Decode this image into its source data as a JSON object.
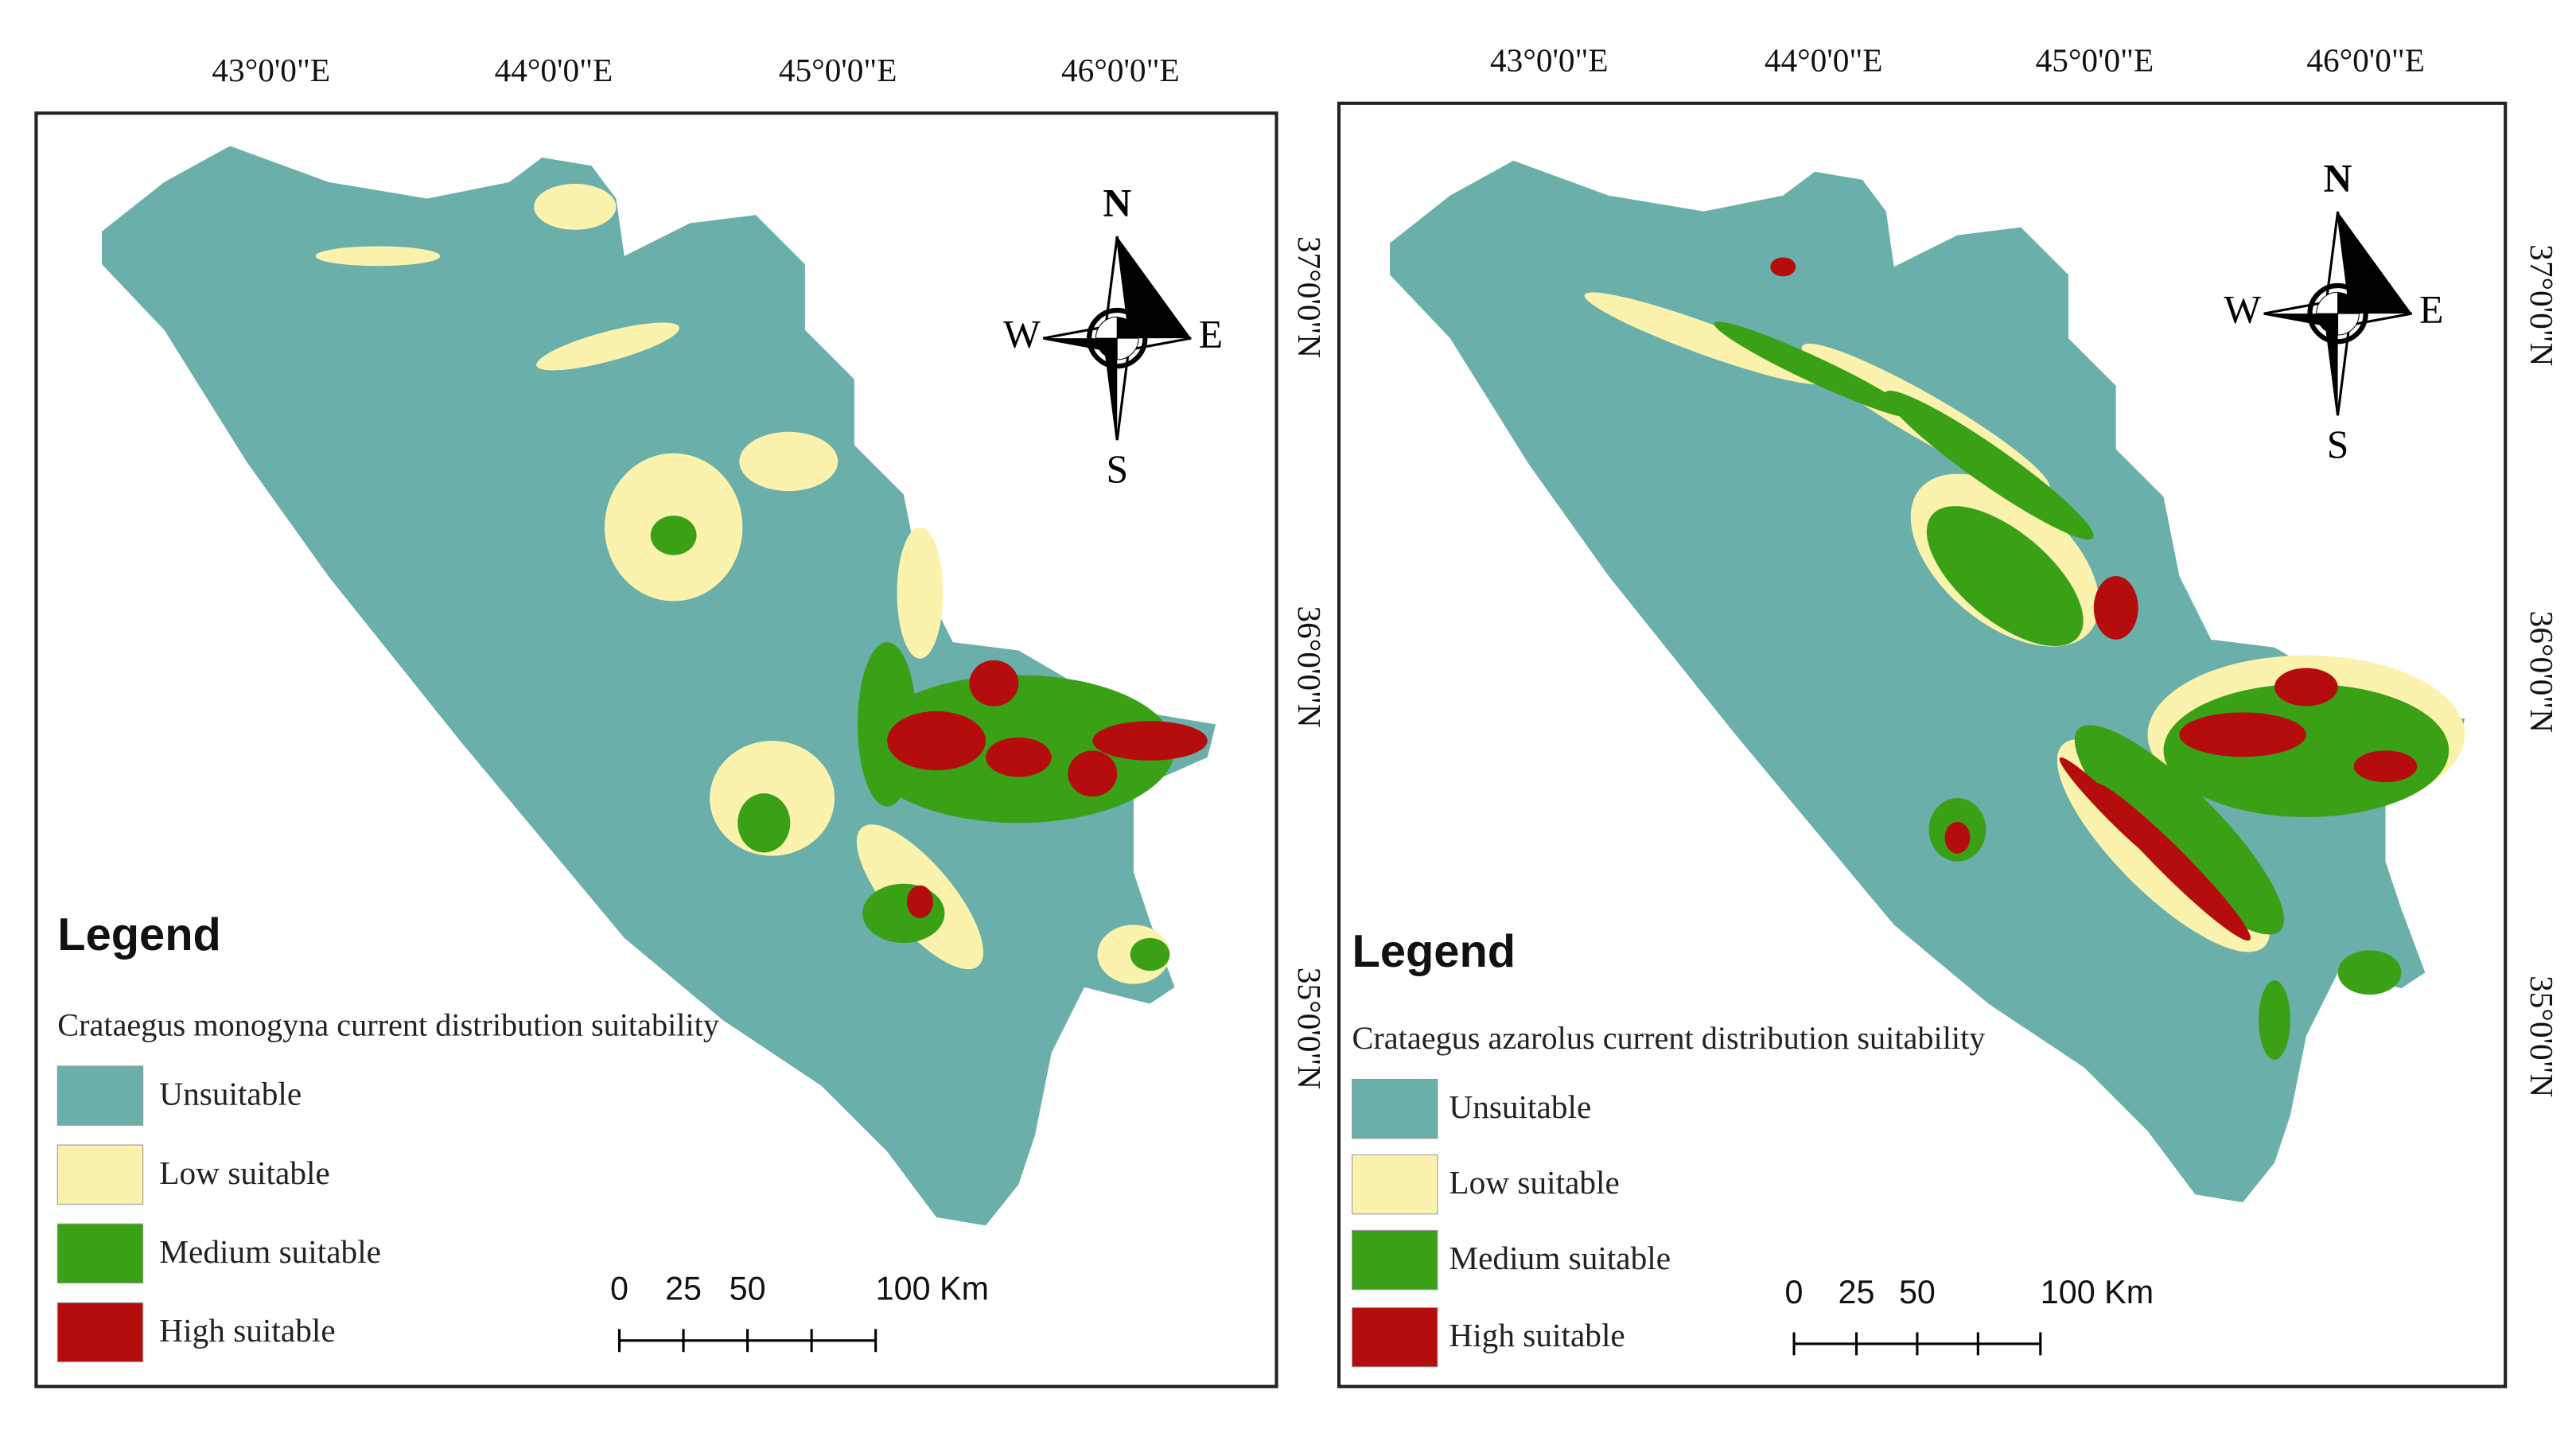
{
  "panels": [
    {
      "longitude_labels": [
        "43°0'0\"E",
        "44°0'0\"E",
        "45°0'0\"E",
        "46°0'0\"E"
      ],
      "latitude_labels": [
        "37°0'0\"N",
        "36°0'0\"N",
        "35°0'0\"N"
      ],
      "compass": {
        "north": "N",
        "south": "S",
        "east": "E",
        "west": "W"
      },
      "legend": {
        "title": "Legend",
        "subtitle": "Crataegus monogyna current distribution suitability",
        "items": [
          {
            "label": "Unsuitable",
            "color": "#6aafa9"
          },
          {
            "label": "Low suitable",
            "color": "#fbf3ad"
          },
          {
            "label": "Medium suitable",
            "color": "#3aa117"
          },
          {
            "label": "High suitable",
            "color": "#b50d0d"
          }
        ]
      },
      "scale_bar": {
        "labels": [
          "0",
          "25",
          "50",
          "100 Km"
        ]
      }
    },
    {
      "longitude_labels": [
        "43°0'0\"E",
        "44°0'0\"E",
        "45°0'0\"E",
        "46°0'0\"E"
      ],
      "latitude_labels": [
        "37°0'0\"N",
        "36°0'0\"N",
        "35°0'0\"N"
      ],
      "compass": {
        "north": "N",
        "south": "S",
        "east": "E",
        "west": "W"
      },
      "legend": {
        "title": "Legend",
        "subtitle": "Crataegus azarolus current distribution suitability",
        "items": [
          {
            "label": "Unsuitable",
            "color": "#6aafa9"
          },
          {
            "label": "Low suitable",
            "color": "#fbf3ad"
          },
          {
            "label": "Medium suitable",
            "color": "#3aa117"
          },
          {
            "label": "High suitable",
            "color": "#b50d0d"
          }
        ]
      },
      "scale_bar": {
        "labels": [
          "0",
          "25",
          "50",
          "100 Km"
        ]
      }
    }
  ]
}
